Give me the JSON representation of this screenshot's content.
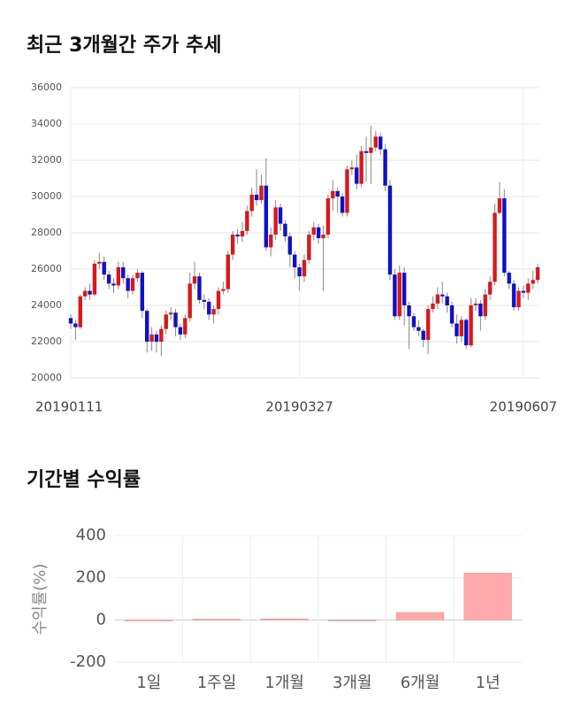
{
  "chart_data": [
    {
      "type": "candlestick",
      "title": "최근 3개월간 주가 추세",
      "categories": [
        "20190111",
        null,
        null,
        null,
        null,
        null,
        null,
        null,
        null,
        null,
        null,
        null,
        null,
        null,
        null,
        null,
        null,
        null,
        null,
        null,
        null,
        null,
        null,
        null,
        null,
        null,
        null,
        null,
        null,
        null,
        null,
        null,
        null,
        null,
        null,
        null,
        null,
        null,
        null,
        null,
        null,
        null,
        null,
        null,
        null,
        null,
        null,
        null,
        "20190327",
        null,
        null,
        null,
        null,
        null,
        null,
        null,
        null,
        null,
        null,
        null,
        null,
        null,
        null,
        null,
        null,
        null,
        null,
        null,
        null,
        null,
        null,
        null,
        null,
        null,
        null,
        null,
        null,
        null,
        null,
        null,
        null,
        null,
        null,
        null,
        null,
        null,
        null,
        null,
        null,
        null,
        null,
        null,
        null,
        null,
        null,
        "20190607",
        null,
        null,
        null
      ],
      "open": [
        23300,
        23000,
        22800,
        24500,
        24800,
        24600,
        26300,
        26400,
        25700,
        25200,
        25100,
        26100,
        25500,
        24800,
        25500,
        25800,
        23700,
        22000,
        22400,
        22000,
        22700,
        23500,
        23600,
        22800,
        22400,
        23300,
        25200,
        25600,
        24300,
        24200,
        23500,
        23800,
        24800,
        24900,
        26800,
        27900,
        27800,
        28100,
        29200,
        30100,
        29800,
        30600,
        27200,
        27900,
        29400,
        28500,
        27800,
        26800,
        26100,
        25600,
        26500,
        27900,
        28300,
        27700,
        27900,
        29900,
        30300,
        30000,
        29100,
        31500,
        31600,
        30700,
        32500,
        32400,
        32700,
        33300,
        32600,
        30600,
        25700,
        23400,
        25800,
        24000,
        23400,
        22800,
        22600,
        22100,
        23800,
        24100,
        24600,
        24500,
        24000,
        23000,
        22300,
        23200,
        21800,
        24000,
        24100,
        23400,
        24600,
        25300,
        29100,
        29900,
        25800,
        25200,
        23900,
        24800,
        24700,
        25200,
        25400
      ],
      "high": [
        23500,
        23200,
        24600,
        25000,
        25200,
        26500,
        26900,
        26700,
        25900,
        25500,
        26400,
        26400,
        25700,
        25700,
        26000,
        25900,
        23800,
        22800,
        22600,
        22900,
        23700,
        23900,
        23800,
        23000,
        23500,
        25800,
        26400,
        25800,
        24600,
        24400,
        24000,
        25000,
        25300,
        27000,
        28100,
        28200,
        28600,
        29500,
        30500,
        31500,
        31200,
        32100,
        28300,
        29800,
        29600,
        28700,
        28000,
        27000,
        26300,
        26800,
        28100,
        28600,
        28500,
        28400,
        30100,
        30900,
        30500,
        30200,
        31700,
        32000,
        32300,
        32800,
        33300,
        33900,
        33600,
        33500,
        32900,
        30900,
        26000,
        26200,
        26100,
        24200,
        23600,
        23200,
        22700,
        24000,
        24500,
        25000,
        25300,
        24700,
        24200,
        23500,
        23400,
        23300,
        24400,
        24400,
        24300,
        24900,
        25600,
        29600,
        30800,
        30400,
        25900,
        25400,
        25000,
        25100,
        25500,
        25900,
        26300
      ],
      "low": [
        22700,
        22100,
        22700,
        24300,
        24300,
        24500,
        26000,
        25400,
        24900,
        24700,
        24900,
        25200,
        24400,
        24600,
        25300,
        23300,
        21400,
        21500,
        21400,
        21200,
        22400,
        23200,
        22300,
        22100,
        22200,
        23100,
        24900,
        24100,
        23800,
        23200,
        23000,
        23500,
        24600,
        24700,
        26500,
        27400,
        27500,
        27900,
        28900,
        29500,
        29600,
        27000,
        26700,
        27600,
        28100,
        27500,
        26100,
        25500,
        24800,
        25300,
        26300,
        27600,
        27400,
        24800,
        27700,
        29200,
        29100,
        28900,
        28900,
        31200,
        30400,
        30500,
        30800,
        30700,
        32500,
        32300,
        30300,
        25400,
        23200,
        23200,
        22900,
        21600,
        22600,
        22300,
        21700,
        21300,
        23600,
        23800,
        24100,
        23600,
        22800,
        21900,
        22000,
        21600,
        21700,
        23700,
        22600,
        23200,
        24300,
        25100,
        29000,
        25600,
        24900,
        23700,
        23700,
        24400,
        24300,
        24900,
        25200
      ],
      "close": [
        23000,
        22800,
        24500,
        24800,
        24600,
        26300,
        26400,
        25700,
        25200,
        25100,
        26100,
        25500,
        24800,
        25500,
        25800,
        23700,
        22000,
        22400,
        22000,
        22700,
        23500,
        23600,
        22800,
        22400,
        23300,
        25200,
        25600,
        24300,
        24200,
        23500,
        23800,
        24800,
        24900,
        26800,
        27900,
        27800,
        28100,
        29200,
        30100,
        29800,
        30600,
        27200,
        27900,
        29400,
        28500,
        27800,
        26800,
        26100,
        25600,
        26500,
        27900,
        28300,
        27700,
        27900,
        29900,
        30300,
        30000,
        29100,
        31500,
        31600,
        30700,
        32500,
        32400,
        32700,
        33300,
        32600,
        30600,
        25700,
        23400,
        25800,
        24000,
        23400,
        22800,
        22600,
        22100,
        23800,
        24100,
        24600,
        24500,
        24000,
        23000,
        22300,
        23200,
        21800,
        24000,
        24100,
        23400,
        24600,
        25300,
        29100,
        29900,
        25800,
        25200,
        23900,
        24800,
        24700,
        25200,
        25400,
        26100
      ],
      "up_color": "#d7191c",
      "down_color": "#1010c8",
      "ylim": [
        20000,
        36000
      ],
      "yticks": [
        20000,
        22000,
        24000,
        26000,
        28000,
        30000,
        32000,
        34000,
        36000
      ],
      "grid": true
    },
    {
      "type": "bar",
      "title": "기간별 수익률",
      "ylabel": "수익률(%)",
      "categories": [
        "1일",
        "1주일",
        "1개월",
        "3개월",
        "6개월",
        "1년"
      ],
      "values": [
        0,
        3,
        5,
        -1,
        35,
        222
      ],
      "colors": [
        "#ffaaaa",
        "#ffaaaa",
        "#ffaaaa",
        "#88bbcc",
        "#ffaaaa",
        "#ffaaaa"
      ],
      "ylim": [
        -200,
        400
      ],
      "yticks": [
        -200,
        0,
        200,
        400
      ],
      "grid": true
    }
  ]
}
